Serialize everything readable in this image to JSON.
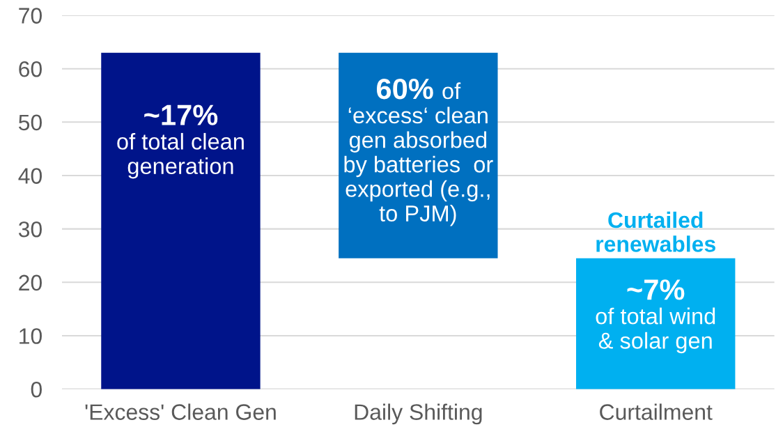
{
  "chart_data": {
    "type": "bar",
    "categories": [
      "'Excess' Clean Gen",
      "Daily Shifting",
      "Curtailment"
    ],
    "values": [
      63,
      38.5,
      24.5
    ],
    "base": [
      0,
      24.5,
      0
    ],
    "colors": [
      "#00148a",
      "#0070c0",
      "#00b0f0"
    ],
    "ylim": [
      0,
      70
    ],
    "yticks": [
      0,
      10,
      20,
      30,
      40,
      50,
      60,
      70
    ],
    "grid": "y",
    "annotations": [
      "~17%\nof total clean\ngeneration",
      "60% of\n‘excess‘ clean\ngen absorbed\nby batteries  or\nexported (e.g.,\nto PJM)",
      "Curtailed\nrenewables",
      "~7%\nof total wind\n& solar gen"
    ]
  }
}
